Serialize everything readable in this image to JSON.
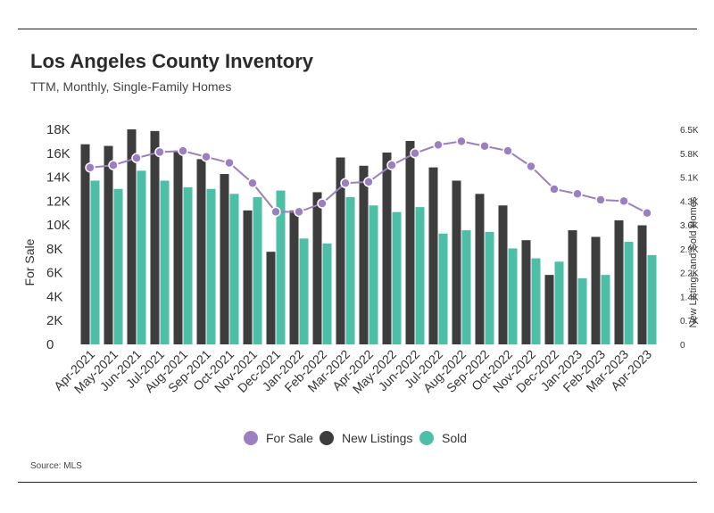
{
  "title": "Los Angeles County Inventory",
  "subtitle": "TTM, Monthly, Single-Family Homes",
  "source": "Source:  MLS",
  "colors": {
    "for_sale": "#9b7fc0",
    "new_listings": "#3d3d3d",
    "sold": "#4dbfa6"
  },
  "chart_data": {
    "type": "bar",
    "categories": [
      "Apr-2021",
      "May-2021",
      "Jun-2021",
      "Jul-2021",
      "Aug-2021",
      "Sep-2021",
      "Oct-2021",
      "Nov-2021",
      "Dec-2021",
      "Jan-2022",
      "Feb-2022",
      "Mar-2022",
      "Apr-2022",
      "May-2022",
      "Jun-2022",
      "Jul-2022",
      "Aug-2022",
      "Sep-2022",
      "Oct-2022",
      "Nov-2022",
      "Dec-2022",
      "Jan-2023",
      "Feb-2023",
      "Mar-2023",
      "Apr-2023"
    ],
    "ylabel": "For Sale",
    "y2label": "New Listings and Sold Homes",
    "ylim": [
      0,
      18000
    ],
    "y2lim": [
      0,
      6500
    ],
    "yticks": [
      "0",
      "2K",
      "4K",
      "6K",
      "8K",
      "10K",
      "12K",
      "14K",
      "16K",
      "18K"
    ],
    "y2ticks": [
      "0",
      "0.7K",
      "1.4K",
      "2.2K",
      "2.9K",
      "3.6K",
      "4.3K",
      "5.1K",
      "5.8K",
      "6.5K"
    ],
    "legend_position": "bottom",
    "series": [
      {
        "name": "For Sale",
        "kind": "line",
        "axis": "left",
        "values": [
          14800,
          15000,
          15600,
          16100,
          16200,
          15700,
          15200,
          13500,
          11100,
          11100,
          11800,
          13500,
          13600,
          15000,
          16000,
          16700,
          17000,
          16600,
          16200,
          14900,
          13000,
          12600,
          12100,
          12000,
          11000
        ]
      },
      {
        "name": "New Listings",
        "kind": "bar",
        "axis": "right",
        "values": [
          6050,
          6000,
          6500,
          6450,
          5850,
          5600,
          5150,
          4050,
          2800,
          4050,
          4600,
          5650,
          5400,
          5800,
          6150,
          5350,
          4950,
          4550,
          4200,
          3150,
          2100,
          3450,
          3250,
          3750,
          3600
        ]
      },
      {
        "name": "Sold",
        "kind": "bar",
        "axis": "right",
        "values": [
          4950,
          4700,
          5250,
          4950,
          4750,
          4700,
          4550,
          4450,
          4650,
          3200,
          3050,
          4450,
          4200,
          4000,
          4150,
          3350,
          3450,
          3400,
          2900,
          2600,
          2500,
          2000,
          2100,
          3100,
          2700
        ]
      }
    ]
  }
}
